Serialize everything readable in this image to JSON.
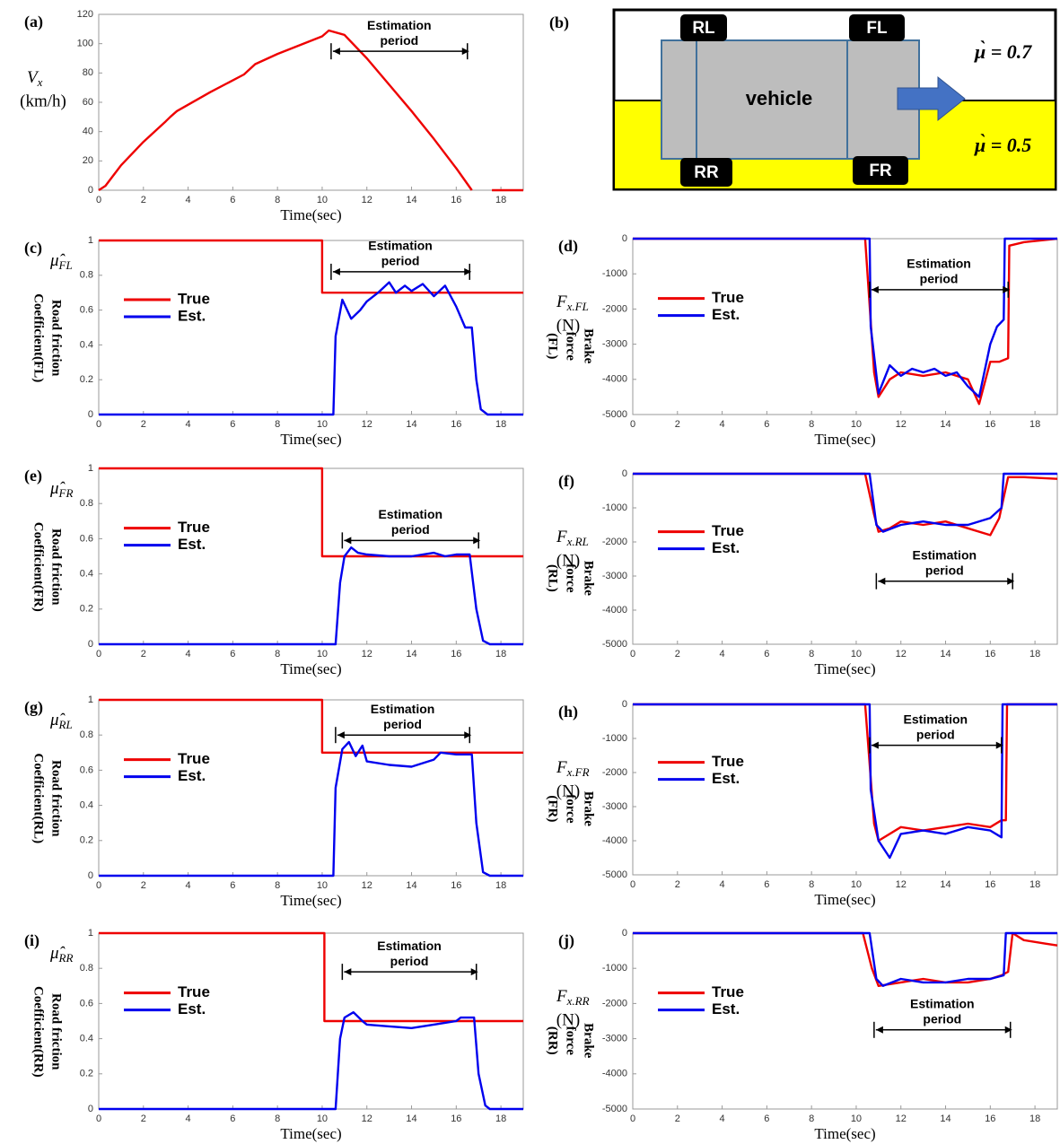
{
  "diagram": {
    "label": "(b)",
    "wheels": [
      "RL",
      "FL",
      "RR",
      "FR"
    ],
    "body": "vehicle",
    "mu_top": "μ̀ = 0.7",
    "mu_bottom": "μ̀ = 0.5"
  },
  "chart_data": [
    {
      "type": "line",
      "label": "(a)",
      "xlabel": "Time(sec)",
      "ylabel": {
        "symbol": {
          "base": "V",
          "sub": "x"
        },
        "unit": "(km/h)"
      },
      "xlim": [
        0,
        19
      ],
      "xticks": [
        0,
        2,
        4,
        6,
        8,
        10,
        12,
        14,
        16,
        18
      ],
      "ylim": [
        0,
        120
      ],
      "yticks": [
        0,
        20,
        40,
        60,
        80,
        100,
        120
      ],
      "annotation": {
        "text": [
          "Estimation",
          "period"
        ],
        "x": [
          10.4,
          16.5
        ]
      },
      "series": [
        {
          "color": "#ee0000",
          "x": [
            0,
            0.3,
            1,
            2,
            3,
            3.2,
            3.5,
            5,
            6.5,
            7,
            8,
            10,
            10.3,
            11,
            12,
            13,
            14,
            15,
            16,
            16.7,
            17.2,
            17.6,
            19
          ],
          "values": [
            0,
            3,
            17,
            33,
            47,
            50,
            54,
            67,
            79,
            86,
            93,
            105,
            109,
            106,
            90,
            72,
            54,
            35,
            15,
            0,
            null,
            0,
            0
          ]
        }
      ]
    },
    {
      "type": "line",
      "label": "(c)",
      "xlabel": "Time(sec)",
      "ylabel": {
        "symbol": {
          "base": "μ̂",
          "sub": "FL"
        },
        "lines": [
          "Road friction",
          "Coefficient(FL)"
        ]
      },
      "xlim": [
        0,
        19
      ],
      "xticks": [
        0,
        2,
        4,
        6,
        8,
        10,
        12,
        14,
        16,
        18
      ],
      "ylim": [
        0,
        1
      ],
      "yticks": [
        0,
        0.2,
        0.4,
        0.6,
        0.8,
        1
      ],
      "legend": "center left",
      "annotation": {
        "text": [
          "Estimation",
          "period"
        ],
        "x": [
          10.4,
          16.6
        ]
      },
      "series": [
        {
          "name": "True",
          "color": "#ee0000",
          "x": [
            0,
            10,
            10,
            19
          ],
          "values": [
            1,
            1,
            0.7,
            0.7
          ]
        },
        {
          "name": "Est.",
          "color": "#0000ee",
          "x": [
            0,
            10.5,
            10.6,
            10.9,
            11.3,
            11.7,
            12,
            12.5,
            13,
            13.3,
            13.7,
            14,
            14.5,
            15,
            15.5,
            16,
            16.4,
            16.7,
            16.9,
            17.1,
            17.4,
            19
          ],
          "values": [
            0,
            0,
            0.45,
            0.66,
            0.55,
            0.6,
            0.65,
            0.7,
            0.76,
            0.7,
            0.74,
            0.71,
            0.75,
            0.68,
            0.74,
            0.62,
            0.5,
            0.5,
            0.2,
            0.03,
            0,
            0
          ]
        }
      ]
    },
    {
      "type": "line",
      "label": "(d)",
      "xlabel": "Time(sec)",
      "ylabel": {
        "symbol": {
          "base": "F",
          "sub": "x.FL"
        },
        "unit": "(N)",
        "lines": [
          "Brake",
          "force",
          "(FL)"
        ]
      },
      "xlim": [
        0,
        19
      ],
      "xticks": [
        0,
        2,
        4,
        6,
        8,
        10,
        12,
        14,
        16,
        18
      ],
      "ylim": [
        -5000,
        0
      ],
      "yticks": [
        -5000,
        -4000,
        -3000,
        -2000,
        -1000,
        0
      ],
      "legend": "center left",
      "annotation": {
        "text": [
          "Estimation",
          "period"
        ],
        "x": [
          10.6,
          16.8
        ]
      },
      "series": [
        {
          "name": "True",
          "color": "#ee0000",
          "x": [
            0,
            10.4,
            10.8,
            11,
            11.5,
            12,
            13,
            14,
            15,
            15.5,
            16,
            16.4,
            16.8,
            16.85,
            17.5,
            19
          ],
          "values": [
            0,
            0,
            -3800,
            -4500,
            -4000,
            -3800,
            -3900,
            -3800,
            -4000,
            -4700,
            -3500,
            -3500,
            -3400,
            -200,
            -100,
            0
          ]
        },
        {
          "name": "Est.",
          "color": "#0000ee",
          "x": [
            0,
            10.6,
            10.65,
            11,
            11.5,
            12,
            12.5,
            13,
            13.5,
            14,
            14.5,
            15,
            15.5,
            16,
            16.3,
            16.6,
            16.65,
            19
          ],
          "values": [
            0,
            0,
            -2500,
            -4400,
            -3600,
            -3900,
            -3700,
            -3800,
            -3700,
            -3900,
            -3800,
            -4200,
            -4500,
            -3000,
            -2500,
            -2300,
            0,
            0
          ]
        }
      ]
    },
    {
      "type": "line",
      "label": "(e)",
      "xlabel": "Time(sec)",
      "ylabel": {
        "symbol": {
          "base": "μ̂",
          "sub": "FR"
        },
        "lines": [
          "Road friction",
          "Coefficient(FR)"
        ]
      },
      "xlim": [
        0,
        19
      ],
      "xticks": [
        0,
        2,
        4,
        6,
        8,
        10,
        12,
        14,
        16,
        18
      ],
      "ylim": [
        0,
        1
      ],
      "yticks": [
        0,
        0.2,
        0.4,
        0.6,
        0.8,
        1
      ],
      "legend": "center left",
      "annotation": {
        "text": [
          "Estimation",
          "period"
        ],
        "x": [
          10.9,
          17.0
        ]
      },
      "series": [
        {
          "name": "True",
          "color": "#ee0000",
          "x": [
            0,
            10,
            10,
            19
          ],
          "values": [
            1,
            1,
            0.5,
            0.5
          ]
        },
        {
          "name": "Est.",
          "color": "#0000ee",
          "x": [
            0,
            10.6,
            10.8,
            11,
            11.3,
            11.6,
            12,
            13,
            14,
            15,
            15.5,
            16,
            16.6,
            16.9,
            17.2,
            17.5,
            19
          ],
          "values": [
            0,
            0,
            0.35,
            0.5,
            0.55,
            0.52,
            0.51,
            0.5,
            0.5,
            0.52,
            0.5,
            0.51,
            0.51,
            0.2,
            0.02,
            0,
            0
          ]
        }
      ]
    },
    {
      "type": "line",
      "label": "(f)",
      "xlabel": "Time(sec)",
      "ylabel": {
        "symbol": {
          "base": "F",
          "sub": "x.RL"
        },
        "unit": "(N)",
        "lines": [
          "Brake",
          "force",
          "(RL)"
        ]
      },
      "xlim": [
        0,
        19
      ],
      "xticks": [
        0,
        2,
        4,
        6,
        8,
        10,
        12,
        14,
        16,
        18
      ],
      "ylim": [
        -5000,
        0
      ],
      "yticks": [
        -5000,
        -4000,
        -3000,
        -2000,
        -1000,
        0
      ],
      "legend": "center left",
      "annotation": {
        "text": [
          "Estimation",
          "period"
        ],
        "x": [
          10.9,
          17.0
        ]
      },
      "series": [
        {
          "name": "True",
          "color": "#ee0000",
          "x": [
            0,
            10.4,
            10.8,
            11,
            11.5,
            12,
            13,
            14,
            15,
            16,
            16.4,
            16.8,
            17.5,
            19
          ],
          "values": [
            0,
            0,
            -1200,
            -1700,
            -1600,
            -1400,
            -1500,
            -1400,
            -1600,
            -1800,
            -1300,
            -100,
            -100,
            -150
          ]
        },
        {
          "name": "Est.",
          "color": "#0000ee",
          "x": [
            0,
            10.6,
            10.9,
            11.2,
            12,
            13,
            14,
            15,
            16,
            16.5,
            16.6,
            19
          ],
          "values": [
            0,
            0,
            -1500,
            -1700,
            -1500,
            -1400,
            -1500,
            -1500,
            -1300,
            -1000,
            0,
            0
          ]
        }
      ]
    },
    {
      "type": "line",
      "label": "(g)",
      "xlabel": "Time(sec)",
      "ylabel": {
        "symbol": {
          "base": "μ̂",
          "sub": "RL"
        },
        "lines": [
          "Road friction",
          "Coefficient(RL)"
        ]
      },
      "xlim": [
        0,
        19
      ],
      "xticks": [
        0,
        2,
        4,
        6,
        8,
        10,
        12,
        14,
        16,
        18
      ],
      "ylim": [
        0,
        1
      ],
      "yticks": [
        0,
        0.2,
        0.4,
        0.6,
        0.8,
        1
      ],
      "legend": "center left",
      "annotation": {
        "text": [
          "Estimation",
          "period"
        ],
        "x": [
          10.6,
          16.6
        ]
      },
      "series": [
        {
          "name": "True",
          "color": "#ee0000",
          "x": [
            0,
            10,
            10,
            19
          ],
          "values": [
            1,
            1,
            0.7,
            0.7
          ]
        },
        {
          "name": "Est.",
          "color": "#0000ee",
          "x": [
            0,
            10.5,
            10.6,
            10.9,
            11.2,
            11.5,
            11.8,
            12,
            13,
            14,
            15,
            15.3,
            16,
            16.7,
            16.9,
            17.2,
            17.5,
            19
          ],
          "values": [
            0,
            0,
            0.5,
            0.72,
            0.76,
            0.68,
            0.74,
            0.65,
            0.63,
            0.62,
            0.66,
            0.7,
            0.69,
            0.69,
            0.3,
            0.02,
            0,
            0
          ]
        }
      ]
    },
    {
      "type": "line",
      "label": "(h)",
      "xlabel": "Time(sec)",
      "ylabel": {
        "symbol": {
          "base": "F",
          "sub": "x.FR"
        },
        "unit": "(N)",
        "lines": [
          "Brake",
          "force",
          "(FR)"
        ]
      },
      "xlim": [
        0,
        19
      ],
      "xticks": [
        0,
        2,
        4,
        6,
        8,
        10,
        12,
        14,
        16,
        18
      ],
      "ylim": [
        -5000,
        0
      ],
      "yticks": [
        -5000,
        -4000,
        -3000,
        -2000,
        -1000,
        0
      ],
      "legend": "center left",
      "annotation": {
        "text": [
          "Estimation",
          "period"
        ],
        "x": [
          10.6,
          16.5
        ]
      },
      "series": [
        {
          "name": "True",
          "color": "#ee0000",
          "x": [
            0,
            10.4,
            10.8,
            11,
            12,
            13,
            14,
            15,
            16,
            16.5,
            16.7,
            16.75,
            19
          ],
          "values": [
            0,
            0,
            -3500,
            -4000,
            -3600,
            -3700,
            -3600,
            -3500,
            -3600,
            -3400,
            -3400,
            0,
            0
          ]
        },
        {
          "name": "Est.",
          "color": "#0000ee",
          "x": [
            0,
            10.6,
            10.65,
            11,
            11.5,
            12,
            13,
            14,
            15,
            16,
            16.5,
            16.55,
            19
          ],
          "values": [
            0,
            0,
            -2500,
            -4000,
            -4500,
            -3800,
            -3700,
            -3800,
            -3600,
            -3700,
            -3900,
            0,
            0
          ]
        }
      ]
    },
    {
      "type": "line",
      "label": "(i)",
      "xlabel": "Time(sec)",
      "ylabel": {
        "symbol": {
          "base": "μ̂",
          "sub": "RR"
        },
        "lines": [
          "Road friction",
          "Coefficient(RR)"
        ]
      },
      "xlim": [
        0,
        19
      ],
      "xticks": [
        0,
        2,
        4,
        6,
        8,
        10,
        12,
        14,
        16,
        18
      ],
      "ylim": [
        0,
        1
      ],
      "yticks": [
        0,
        0.2,
        0.4,
        0.6,
        0.8,
        1
      ],
      "legend": "center left",
      "annotation": {
        "text": [
          "Estimation",
          "period"
        ],
        "x": [
          10.9,
          16.9
        ]
      },
      "series": [
        {
          "name": "True",
          "color": "#ee0000",
          "x": [
            0,
            10.1,
            10.1,
            19
          ],
          "values": [
            1,
            1,
            0.5,
            0.5
          ]
        },
        {
          "name": "Est.",
          "color": "#0000ee",
          "x": [
            0,
            10.6,
            10.8,
            11,
            11.4,
            11.8,
            12,
            13,
            14,
            15,
            16,
            16.2,
            16.8,
            17,
            17.3,
            17.5,
            19
          ],
          "values": [
            0,
            0,
            0.4,
            0.52,
            0.55,
            0.5,
            0.48,
            0.47,
            0.46,
            0.48,
            0.5,
            0.52,
            0.52,
            0.2,
            0.02,
            0,
            0
          ]
        }
      ]
    },
    {
      "type": "line",
      "label": "(j)",
      "xlabel": "Time(sec)",
      "ylabel": {
        "symbol": {
          "base": "F",
          "sub": "x.RR"
        },
        "unit": "(N)",
        "lines": [
          "Brake",
          "force",
          "(RR)"
        ]
      },
      "xlim": [
        0,
        19
      ],
      "xticks": [
        0,
        2,
        4,
        6,
        8,
        10,
        12,
        14,
        16,
        18
      ],
      "ylim": [
        -5000,
        0
      ],
      "yticks": [
        -5000,
        -4000,
        -3000,
        -2000,
        -1000,
        0
      ],
      "legend": "center left",
      "annotation": {
        "text": [
          "Estimation",
          "period"
        ],
        "x": [
          10.8,
          16.9
        ]
      },
      "series": [
        {
          "name": "True",
          "color": "#ee0000",
          "x": [
            0,
            10.3,
            10.7,
            11,
            12,
            13,
            14,
            15,
            16,
            16.5,
            16.8,
            17,
            17.5,
            18.5,
            19
          ],
          "values": [
            0,
            0,
            -1000,
            -1500,
            -1400,
            -1300,
            -1400,
            -1400,
            -1300,
            -1200,
            -1100,
            0,
            -200,
            -300,
            -350
          ]
        },
        {
          "name": "Est.",
          "color": "#0000ee",
          "x": [
            0,
            10.6,
            10.9,
            11.2,
            12,
            13,
            14,
            15,
            16,
            16.6,
            16.7,
            19
          ],
          "values": [
            0,
            0,
            -1300,
            -1500,
            -1300,
            -1400,
            -1400,
            -1300,
            -1300,
            -1200,
            0,
            0
          ]
        }
      ]
    }
  ]
}
